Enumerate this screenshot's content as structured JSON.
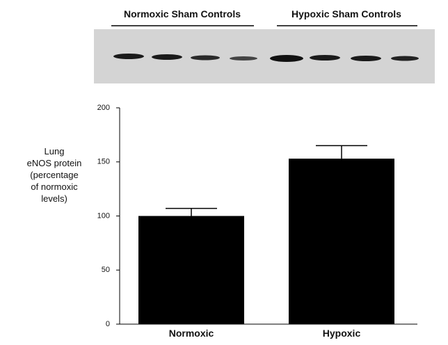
{
  "blot_labels": [
    "Normoxic Sham Controls",
    "Hypoxic Sham Controls"
  ],
  "chart_data": {
    "type": "bar",
    "ylabel": [
      "Lung",
      "eNOS protein",
      "(percentage",
      "of  normoxic",
      "levels)"
    ],
    "categories": [
      "Normoxic",
      "Hypoxic"
    ],
    "values": [
      100,
      153
    ],
    "errors": [
      7,
      12
    ],
    "color": "#000000",
    "ylim": [
      0,
      200
    ],
    "yticks": [
      0,
      50,
      100,
      150,
      200
    ]
  }
}
